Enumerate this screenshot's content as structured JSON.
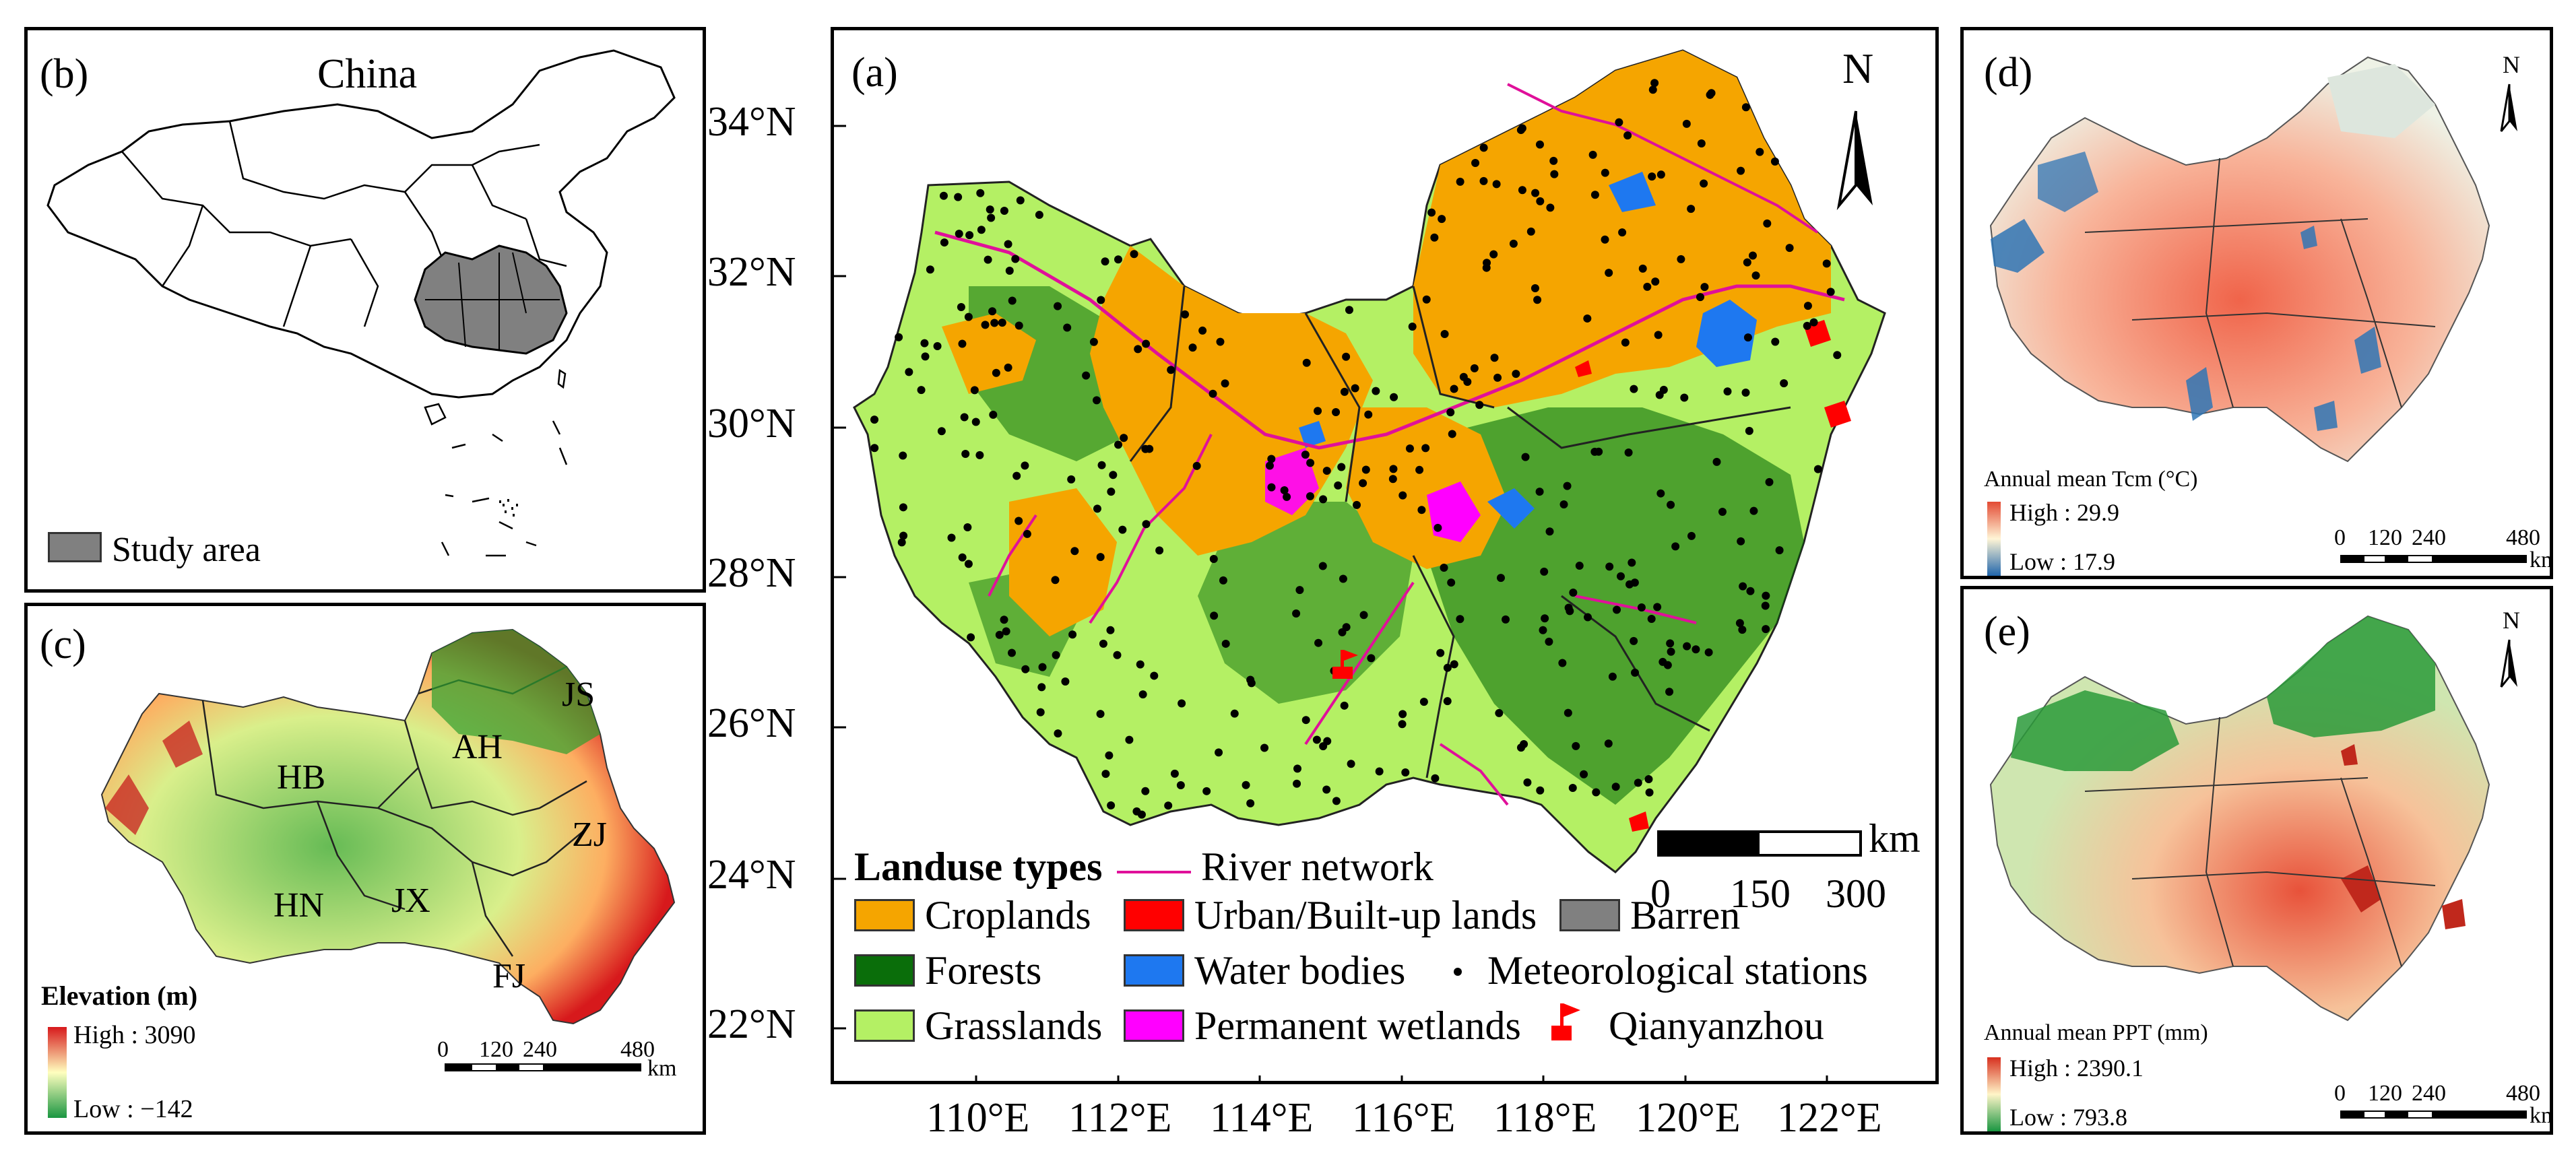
{
  "panel_b": {
    "label": "(b)",
    "title": "China",
    "legend_label": "Study area",
    "colors": {
      "study_area": "#808080",
      "outline": "#000000"
    }
  },
  "panel_c": {
    "label": "(c)",
    "legend_title": "Elevation (m)",
    "high": "High : 3090",
    "low": "Low : −142",
    "province_labels": [
      "JS",
      "AH",
      "HB",
      "ZJ",
      "HN",
      "JX",
      "FJ"
    ],
    "scale": {
      "ticks": [
        "0",
        "120",
        "240",
        "480"
      ],
      "unit": "km"
    },
    "colors": {
      "high": "#d7191c",
      "mid": "#ffffbf",
      "low": "#1a9641"
    }
  },
  "panel_a": {
    "label": "(a)",
    "lat_ticks": [
      "34°N",
      "32°N",
      "30°N",
      "28°N",
      "26°N",
      "24°N",
      "22°N"
    ],
    "lon_ticks": [
      "110°E",
      "112°E",
      "114°E",
      "116°E",
      "118°E",
      "120°E",
      "122°E"
    ],
    "north": "N",
    "scale": {
      "unit": "km",
      "ticks": [
        "0",
        "150",
        "300"
      ]
    },
    "legend": {
      "title": "Landuse types",
      "river": "River network",
      "items": [
        {
          "label": "Croplands",
          "color": "#f5a500"
        },
        {
          "label": "Urban/Built-up lands",
          "color": "#ff0000"
        },
        {
          "label": "Barren",
          "color": "#808080"
        },
        {
          "label": "Forests",
          "color": "#0a6e0a"
        },
        {
          "label": "Water bodies",
          "color": "#1e78f0"
        },
        {
          "label": "Meteorological stations",
          "color": "#000000"
        },
        {
          "label": "Grasslands",
          "color": "#b4f064"
        },
        {
          "label": "Permanent wetlands",
          "color": "#ff00ff"
        },
        {
          "label": "Qianyanzhou",
          "color": "#ff0000"
        }
      ]
    }
  },
  "panel_d": {
    "label": "(d)",
    "north": "N",
    "legend_title": "Annual mean Tcm (°C)",
    "high": "High : 29.9",
    "low": "Low : 17.9",
    "scale": {
      "ticks": [
        "0",
        "120",
        "240",
        "480"
      ],
      "unit": "km"
    },
    "colors": {
      "high": "#e34a33",
      "mid": "#fff5d6",
      "low": "#2166ac"
    }
  },
  "panel_e": {
    "label": "(e)",
    "north": "N",
    "legend_title": "Annual mean PPT (mm)",
    "high": "High : 2390.1",
    "low": "Low : 793.8",
    "scale": {
      "ticks": [
        "0",
        "120",
        "240",
        "480"
      ],
      "unit": "km"
    },
    "colors": {
      "high": "#d7301f",
      "mid": "#fff5c8",
      "low": "#1a9641"
    }
  }
}
